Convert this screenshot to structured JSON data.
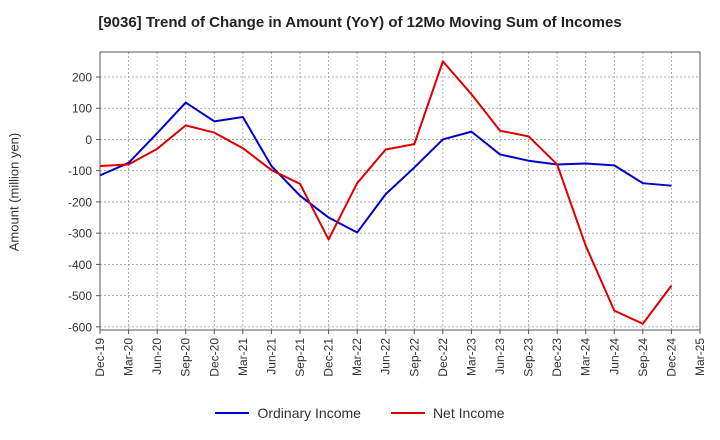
{
  "chart_data": {
    "type": "line",
    "title": "[9036]  Trend of Change in Amount (YoY) of 12Mo Moving Sum of Incomes",
    "xlabel": "",
    "ylabel": "Amount (million yen)",
    "ylim": [
      -610,
      280
    ],
    "yticks": [
      200,
      100,
      0,
      -100,
      -200,
      -300,
      -400,
      -500,
      -600
    ],
    "categories": [
      "Dec-19",
      "Mar-20",
      "Jun-20",
      "Sep-20",
      "Dec-20",
      "Mar-21",
      "Jun-21",
      "Sep-21",
      "Dec-21",
      "Mar-22",
      "Jun-22",
      "Sep-22",
      "Dec-22",
      "Mar-23",
      "Jun-23",
      "Sep-23",
      "Dec-23",
      "Mar-24",
      "Jun-24",
      "Sep-24",
      "Dec-24",
      "Mar-25"
    ],
    "grid": true,
    "legend_position": "bottom-center",
    "series": [
      {
        "name": "Ordinary Income",
        "color": "#0000cc",
        "values": [
          -115,
          -75,
          20,
          118,
          58,
          72,
          -85,
          -180,
          -250,
          -298,
          -175,
          -90,
          0,
          25,
          -48,
          -68,
          -80,
          -77,
          -83,
          -140,
          -148,
          null
        ]
      },
      {
        "name": "Net Income",
        "color": "#dd0000",
        "values": [
          -85,
          -80,
          -30,
          45,
          22,
          -28,
          -98,
          -142,
          -320,
          -140,
          -32,
          -15,
          250,
          145,
          28,
          10,
          -80,
          -340,
          -548,
          -590,
          -468,
          null
        ]
      }
    ]
  }
}
